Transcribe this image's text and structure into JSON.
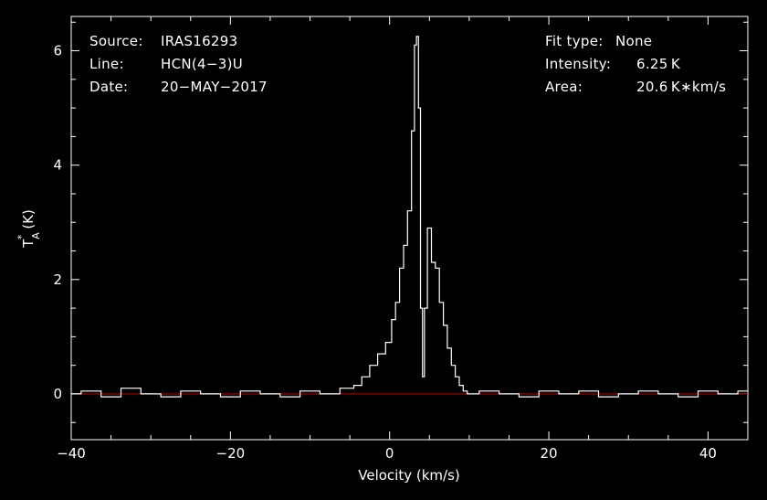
{
  "header": {
    "left": [
      {
        "key": "Source:",
        "value": "IRAS16293"
      },
      {
        "key": "Line:",
        "value": "HCN(4−3)U"
      },
      {
        "key": "Date:",
        "value": "20−MAY−2017"
      }
    ],
    "right": [
      {
        "key": "Fit type:",
        "value": "None"
      },
      {
        "key": "Intensity:",
        "value": "6.25 K"
      },
      {
        "key": "Area:",
        "value": "20.6 K∗km/s"
      }
    ]
  },
  "chart_data": {
    "type": "line",
    "xlabel": "Velocity (km/s)",
    "ylabel": "T*A (K)",
    "xlim": [
      -40,
      45
    ],
    "ylim": [
      -0.8,
      6.6
    ],
    "xticks": [
      -40,
      -20,
      0,
      20,
      40
    ],
    "yticks": [
      0,
      2,
      4,
      6
    ],
    "grid": false,
    "baseline": {
      "y": 0,
      "color": "#c00000"
    },
    "line_color": "#ffffff",
    "x": [
      -40.0,
      -37.5,
      -35.0,
      -32.5,
      -30.0,
      -27.5,
      -25.0,
      -22.5,
      -20.0,
      -17.5,
      -15.0,
      -12.5,
      -10.0,
      -7.5,
      -5.0,
      -4.0,
      -3.0,
      -2.0,
      -1.0,
      0.0,
      0.5,
      1.0,
      1.5,
      2.0,
      2.5,
      3.0,
      3.25,
      3.5,
      3.75,
      4.0,
      4.25,
      4.5,
      5.0,
      5.5,
      6.0,
      6.5,
      7.0,
      7.5,
      8.0,
      8.5,
      9.0,
      9.5,
      10.0,
      12.5,
      15.0,
      17.5,
      20.0,
      22.5,
      25.0,
      27.5,
      30.0,
      32.5,
      35.0,
      37.5,
      40.0,
      42.5,
      45.0
    ],
    "y": [
      0.0,
      0.05,
      -0.05,
      0.1,
      0.0,
      -0.05,
      0.05,
      0.0,
      -0.05,
      0.05,
      0.0,
      -0.05,
      0.05,
      0.0,
      0.1,
      0.15,
      0.3,
      0.5,
      0.7,
      0.9,
      1.3,
      1.6,
      2.2,
      2.6,
      3.2,
      4.6,
      6.1,
      6.25,
      5.0,
      1.5,
      0.3,
      1.5,
      2.9,
      2.3,
      2.2,
      1.6,
      1.2,
      0.8,
      0.5,
      0.3,
      0.15,
      0.05,
      0.0,
      0.05,
      0.0,
      -0.05,
      0.05,
      0.0,
      0.05,
      -0.05,
      0.0,
      0.05,
      0.0,
      -0.05,
      0.05,
      0.0,
      0.05
    ]
  }
}
